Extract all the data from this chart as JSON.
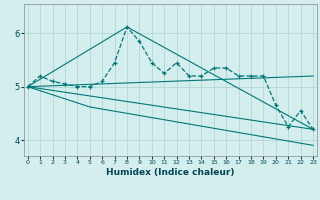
{
  "xlabel": "Humidex (Indice chaleur)",
  "background_color": "#d4eeed",
  "grid_color": "#aad4d0",
  "line_color": "#007878",
  "x_ticks": [
    0,
    1,
    2,
    3,
    4,
    5,
    6,
    7,
    8,
    9,
    10,
    11,
    12,
    13,
    14,
    15,
    16,
    17,
    18,
    19,
    20,
    21,
    22,
    23
  ],
  "ylim": [
    3.7,
    6.55
  ],
  "yticks": [
    4,
    5,
    6
  ],
  "xlim": [
    -0.3,
    23.3
  ],
  "line1_x": [
    0,
    1,
    2,
    3,
    4,
    5,
    6,
    7,
    8,
    9,
    10,
    11,
    12,
    13,
    14,
    15,
    16,
    17,
    18,
    19,
    20,
    21,
    22,
    23
  ],
  "line1_y": [
    5.0,
    5.2,
    5.1,
    5.05,
    5.0,
    5.0,
    5.1,
    5.45,
    6.12,
    5.85,
    5.45,
    5.25,
    5.45,
    5.2,
    5.2,
    5.35,
    5.35,
    5.2,
    5.2,
    5.2,
    4.65,
    4.25,
    4.55,
    4.2
  ],
  "line2_x": [
    0,
    23
  ],
  "line2_y": [
    5.0,
    5.2
  ],
  "line3_x": [
    0,
    8,
    23
  ],
  "line3_y": [
    5.0,
    6.12,
    4.2
  ],
  "line4_x": [
    0,
    5,
    23
  ],
  "line4_y": [
    5.0,
    4.62,
    3.9
  ],
  "line5_x": [
    0,
    23
  ],
  "line5_y": [
    5.0,
    4.2
  ]
}
